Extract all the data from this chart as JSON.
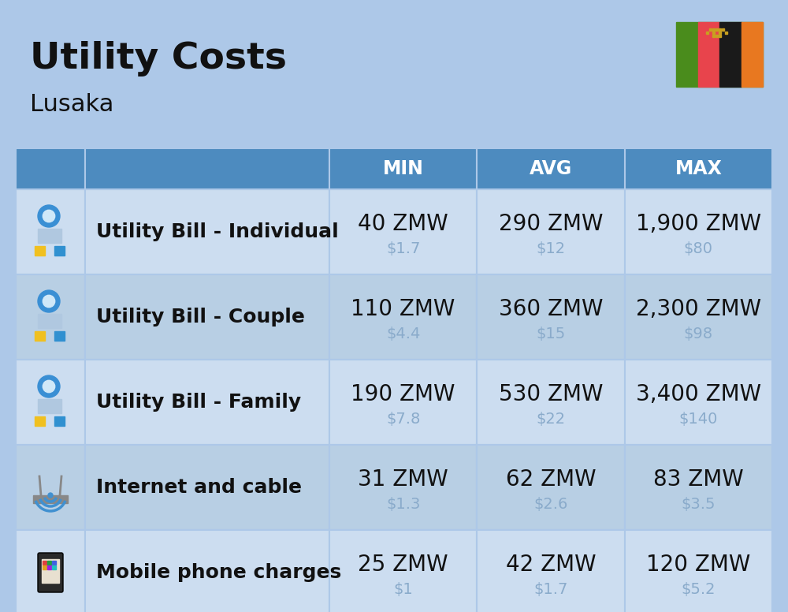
{
  "title": "Utility Costs",
  "subtitle": "Lusaka",
  "background_color": "#adc8e8",
  "header_color": "#4d8bbf",
  "row_color_light": "#ccddf0",
  "row_color_dark": "#b8cfe4",
  "header_text_color": "#ffffff",
  "main_text_color": "#111111",
  "sub_text_color": "#8aabcb",
  "title_fontsize": 34,
  "subtitle_fontsize": 22,
  "header_fontsize": 17,
  "label_fontsize": 18,
  "value_fontsize": 20,
  "subvalue_fontsize": 14,
  "columns": [
    "MIN",
    "AVG",
    "MAX"
  ],
  "rows": [
    {
      "label": "Utility Bill - Individual",
      "min_zmw": "40 ZMW",
      "min_usd": "$1.7",
      "avg_zmw": "290 ZMW",
      "avg_usd": "$12",
      "max_zmw": "1,900 ZMW",
      "max_usd": "$80"
    },
    {
      "label": "Utility Bill - Couple",
      "min_zmw": "110 ZMW",
      "min_usd": "$4.4",
      "avg_zmw": "360 ZMW",
      "avg_usd": "$15",
      "max_zmw": "2,300 ZMW",
      "max_usd": "$98"
    },
    {
      "label": "Utility Bill - Family",
      "min_zmw": "190 ZMW",
      "min_usd": "$7.8",
      "avg_zmw": "530 ZMW",
      "avg_usd": "$22",
      "max_zmw": "3,400 ZMW",
      "max_usd": "$140"
    },
    {
      "label": "Internet and cable",
      "min_zmw": "31 ZMW",
      "min_usd": "$1.3",
      "avg_zmw": "62 ZMW",
      "avg_usd": "$2.6",
      "max_zmw": "83 ZMW",
      "max_usd": "$3.5"
    },
    {
      "label": "Mobile phone charges",
      "min_zmw": "25 ZMW",
      "min_usd": "$1",
      "avg_zmw": "42 ZMW",
      "avg_usd": "$1.7",
      "max_zmw": "120 ZMW",
      "max_usd": "$5.2"
    }
  ],
  "flag_green": "#4a8c1c",
  "flag_red": "#e8444c",
  "flag_black": "#1a1a1a",
  "flag_orange": "#e87820"
}
